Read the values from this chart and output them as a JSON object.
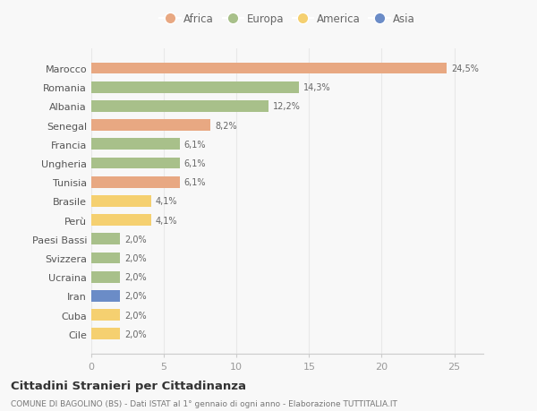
{
  "categories": [
    "Marocco",
    "Romania",
    "Albania",
    "Senegal",
    "Francia",
    "Ungheria",
    "Tunisia",
    "Brasile",
    "Perù",
    "Paesi Bassi",
    "Svizzera",
    "Ucraina",
    "Iran",
    "Cuba",
    "Cile"
  ],
  "values": [
    24.5,
    14.3,
    12.2,
    8.2,
    6.1,
    6.1,
    6.1,
    4.1,
    4.1,
    2.0,
    2.0,
    2.0,
    2.0,
    2.0,
    2.0
  ],
  "labels": [
    "24,5%",
    "14,3%",
    "12,2%",
    "8,2%",
    "6,1%",
    "6,1%",
    "6,1%",
    "4,1%",
    "4,1%",
    "2,0%",
    "2,0%",
    "2,0%",
    "2,0%",
    "2,0%",
    "2,0%"
  ],
  "colors": [
    "#e8a882",
    "#a8c08a",
    "#a8c08a",
    "#e8a882",
    "#a8c08a",
    "#a8c08a",
    "#e8a882",
    "#f5d070",
    "#f5d070",
    "#a8c08a",
    "#a8c08a",
    "#a8c08a",
    "#6b8cc7",
    "#f5d070",
    "#f5d070"
  ],
  "continents": [
    "Africa",
    "Europa",
    "America",
    "Asia"
  ],
  "legend_colors": [
    "#e8a882",
    "#a8c08a",
    "#f5d070",
    "#6b8cc7"
  ],
  "title": "Cittadini Stranieri per Cittadinanza",
  "subtitle": "COMUNE DI BAGOLINO (BS) - Dati ISTAT al 1° gennaio di ogni anno - Elaborazione TUTTITALIA.IT",
  "xlim": [
    0,
    27
  ],
  "xticks": [
    0,
    5,
    10,
    15,
    20,
    25
  ],
  "background_color": "#f8f8f8",
  "bar_height": 0.6,
  "grid_color": "#e8e8e8"
}
